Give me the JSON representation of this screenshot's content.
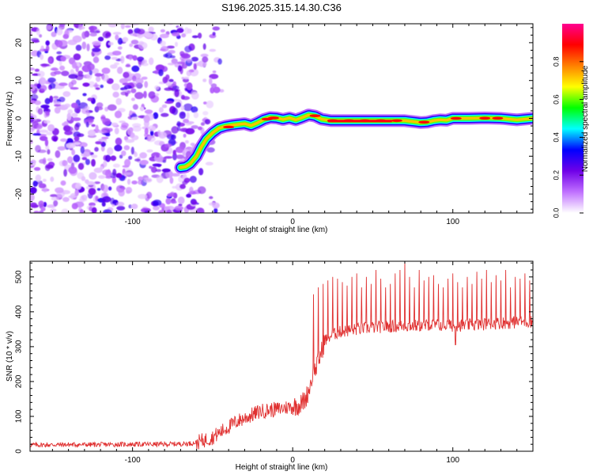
{
  "title": "S196.2025.315.14.30.C36",
  "chart_data": [
    {
      "type": "heatmap",
      "xlabel": "Height of straight line (km)",
      "ylabel": "Frequency (Hz)",
      "xlim": [
        -164,
        150
      ],
      "ylim": [
        -25,
        25
      ],
      "xticks": [
        -100,
        0,
        100
      ],
      "yticks": [
        -20,
        -10,
        0,
        10,
        20
      ],
      "noise_region_x": [
        -164,
        -52
      ],
      "ridge": {
        "x": [
          -70,
          -67,
          -64,
          -60,
          -57,
          -54,
          -50,
          -46,
          -42,
          -38,
          -34,
          -30,
          -26,
          -22,
          -18,
          -14,
          -10,
          -6,
          -2,
          2,
          6,
          10,
          14,
          18,
          24,
          40,
          60,
          70,
          76,
          80,
          84,
          88,
          92,
          96,
          100,
          110,
          120,
          130,
          140,
          150
        ],
        "y": [
          -13,
          -12.8,
          -12,
          -10,
          -7.5,
          -5.5,
          -3.8,
          -2.6,
          -2.1,
          -1.8,
          -1.6,
          -1.4,
          -1.9,
          -1.2,
          -0.3,
          0.2,
          0.1,
          -0.3,
          0.1,
          -0.4,
          0.2,
          0.9,
          0.6,
          -0.2,
          -0.6,
          -0.6,
          -0.6,
          -0.6,
          -0.9,
          -1.1,
          -1.0,
          -0.6,
          -0.4,
          -0.5,
          0.0,
          0.0,
          0.1,
          0.0,
          -0.4,
          0.0
        ]
      },
      "colorbar": {
        "label": "Normalized spectral amplitude",
        "range": [
          0,
          1
        ],
        "ticks": [
          0.0,
          0.2,
          0.4,
          0.6,
          0.8
        ],
        "tick_labels": [
          "0.0",
          "0.2",
          "0.4",
          "0.6",
          "0.8"
        ],
        "colors": [
          "#ffffff",
          "#c070ff",
          "#7000e8",
          "#0000ff",
          "#00ffff",
          "#00ff00",
          "#ffff00",
          "#ff8000",
          "#ff0000",
          "#ff0090"
        ]
      }
    },
    {
      "type": "line",
      "xlabel": "Height of straight line (km)",
      "ylabel": "SNR (10 * v/v)",
      "xlim": [
        -164,
        150
      ],
      "ylim": [
        0,
        545
      ],
      "xticks": [
        -100,
        0,
        100
      ],
      "yticks": [
        0,
        100,
        200,
        300,
        400,
        500
      ],
      "color": "#e03030",
      "series": [
        {
          "name": "SNR",
          "x": [
            -164,
            -140,
            -120,
            -100,
            -80,
            -65,
            -60,
            -55,
            -50,
            -45,
            -40,
            -35,
            -30,
            -25,
            -20,
            -15,
            -10,
            -5,
            0,
            5,
            8,
            10,
            12,
            15,
            18,
            20,
            25,
            30,
            40,
            50,
            60,
            70,
            80,
            90,
            100,
            110,
            120,
            130,
            140,
            150
          ],
          "y": [
            18,
            19,
            19,
            20,
            20,
            22,
            25,
            32,
            40,
            55,
            70,
            85,
            95,
            105,
            115,
            118,
            120,
            125,
            128,
            135,
            150,
            175,
            210,
            245,
            285,
            318,
            335,
            343,
            350,
            355,
            358,
            360,
            360,
            362,
            360,
            362,
            365,
            368,
            370,
            372
          ]
        }
      ],
      "spikes": {
        "x": [
          13,
          16,
          19,
          22,
          25,
          28,
          31,
          34,
          37,
          40,
          43,
          46,
          49,
          52,
          55,
          58,
          61,
          64,
          67,
          70,
          73,
          76,
          79,
          82,
          85,
          88,
          91,
          94,
          97,
          100,
          103,
          106,
          109,
          112,
          115,
          118,
          121,
          124,
          127,
          130,
          133,
          136,
          139,
          142,
          145,
          148
        ],
        "y": [
          450,
          470,
          480,
          490,
          500,
          495,
          485,
          475,
          500,
          510,
          470,
          500,
          480,
          520,
          495,
          470,
          480,
          510,
          520,
          545,
          500,
          470,
          520,
          490,
          500,
          505,
          480,
          470,
          495,
          510,
          485,
          470,
          500,
          480,
          515,
          495,
          520,
          485,
          505,
          490,
          520,
          470,
          500,
          495,
          510,
          490
        ]
      }
    }
  ]
}
